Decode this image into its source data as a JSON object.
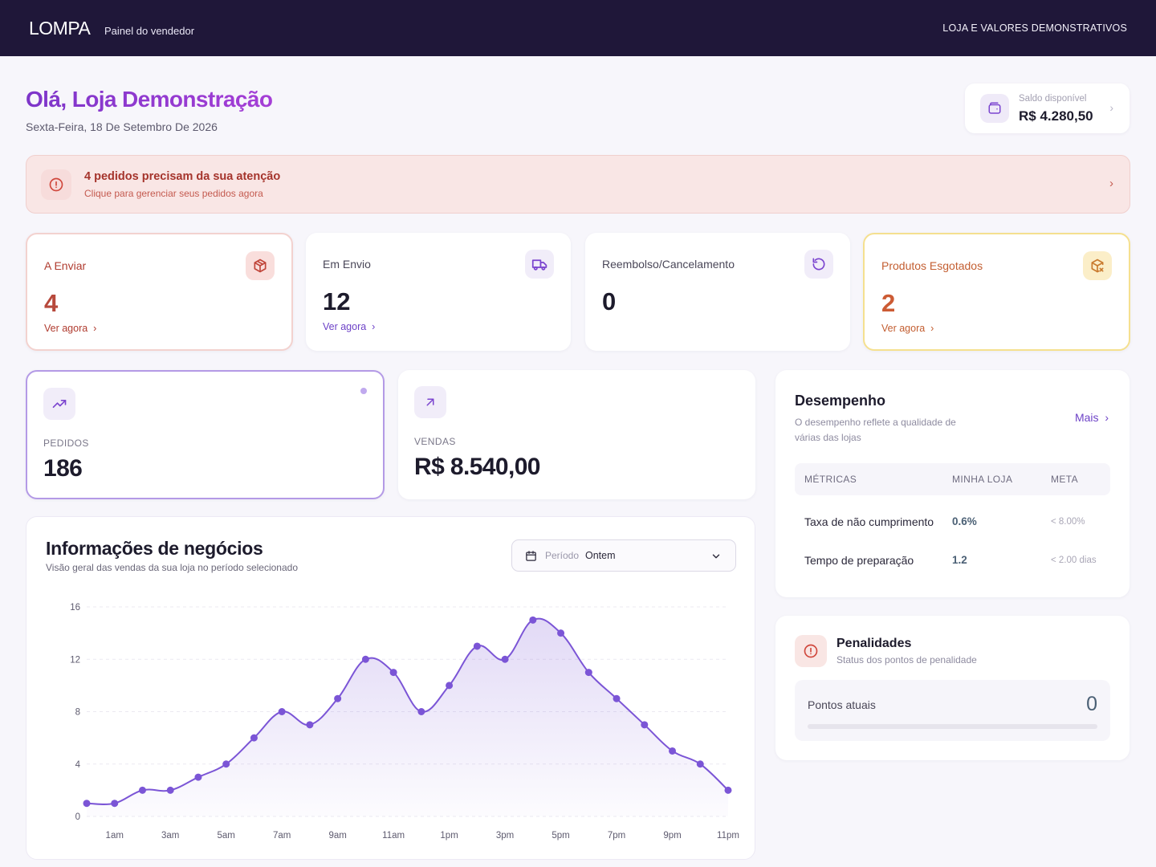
{
  "header": {
    "brand": "LOMPA",
    "subtitle": "Painel do vendedor",
    "right_text": "LOJA E VALORES DEMONSTRATIVOS"
  },
  "greeting": {
    "title": "Olá, Loja Demonstração",
    "date": "Sexta-Feira, 18 De Setembro De 2026"
  },
  "balance": {
    "label": "Saldo disponível",
    "value": "R$ 4.280,50",
    "icon": "wallet-icon"
  },
  "alert": {
    "title": "4 pedidos precisam da sua atenção",
    "subtitle": "Clique para gerenciar seus pedidos agora",
    "icon": "alert-circle-icon"
  },
  "stats": [
    {
      "label": "A Enviar",
      "value": "4",
      "link": "Ver agora",
      "icon": "package-icon"
    },
    {
      "label": "Em Envio",
      "value": "12",
      "link": "Ver agora",
      "icon": "truck-icon"
    },
    {
      "label": "Reembolso/Cancelamento",
      "value": "0",
      "icon": "refresh-icon"
    },
    {
      "label": "Produtos Esgotados",
      "value": "2",
      "link": "Ver agora",
      "icon": "package-x-icon"
    }
  ],
  "kpis": [
    {
      "label": "PEDIDOS",
      "value": "186",
      "icon": "trending-up-icon"
    },
    {
      "label": "VENDAS",
      "value": "R$ 8.540,00",
      "icon": "arrow-up-right-icon"
    }
  ],
  "business": {
    "title": "Informações de negócios",
    "subtitle": "Visão geral das vendas da sua loja no período selecionado",
    "period_label": "Período",
    "period_value": "Ontem"
  },
  "chart_data": {
    "type": "area",
    "x": [
      "12am",
      "1am",
      "2am",
      "3am",
      "4am",
      "5am",
      "6am",
      "7am",
      "8am",
      "9am",
      "10am",
      "11am",
      "12pm",
      "1pm",
      "2pm",
      "3pm",
      "4pm",
      "5pm",
      "6pm",
      "7pm",
      "8pm",
      "9pm",
      "10pm",
      "11pm"
    ],
    "x_tick_labels": [
      "1am",
      "3am",
      "5am",
      "7am",
      "9am",
      "11am",
      "1pm",
      "3pm",
      "5pm",
      "7pm",
      "9pm",
      "11pm"
    ],
    "series": [
      {
        "values": [
          1,
          1,
          2,
          2,
          3,
          4,
          6,
          8,
          7,
          9,
          12,
          11,
          8,
          10,
          13,
          12,
          15,
          14,
          11,
          9,
          7,
          5,
          4,
          2
        ]
      }
    ],
    "y_ticks": [
      0,
      4,
      8,
      12,
      16
    ],
    "ylim": [
      0,
      16
    ],
    "grid": true,
    "color": "#7b55d6"
  },
  "performance": {
    "title": "Desempenho",
    "description": "O desempenho reflete a qualidade de várias das lojas",
    "more": "Mais",
    "columns": [
      "MÉTRICAS",
      "MINHA LOJA",
      "META"
    ],
    "rows": [
      {
        "metric": "Taxa de não cumprimento",
        "value": "0.6%",
        "goal": "< 8.00%"
      },
      {
        "metric": "Tempo de preparação",
        "value": "1.2",
        "goal": "< 2.00 dias"
      }
    ]
  },
  "penalties": {
    "title": "Penalidades",
    "subtitle": "Status dos pontos de penalidade",
    "points_label": "Pontos atuais",
    "points_value": "0",
    "progress": 0
  }
}
